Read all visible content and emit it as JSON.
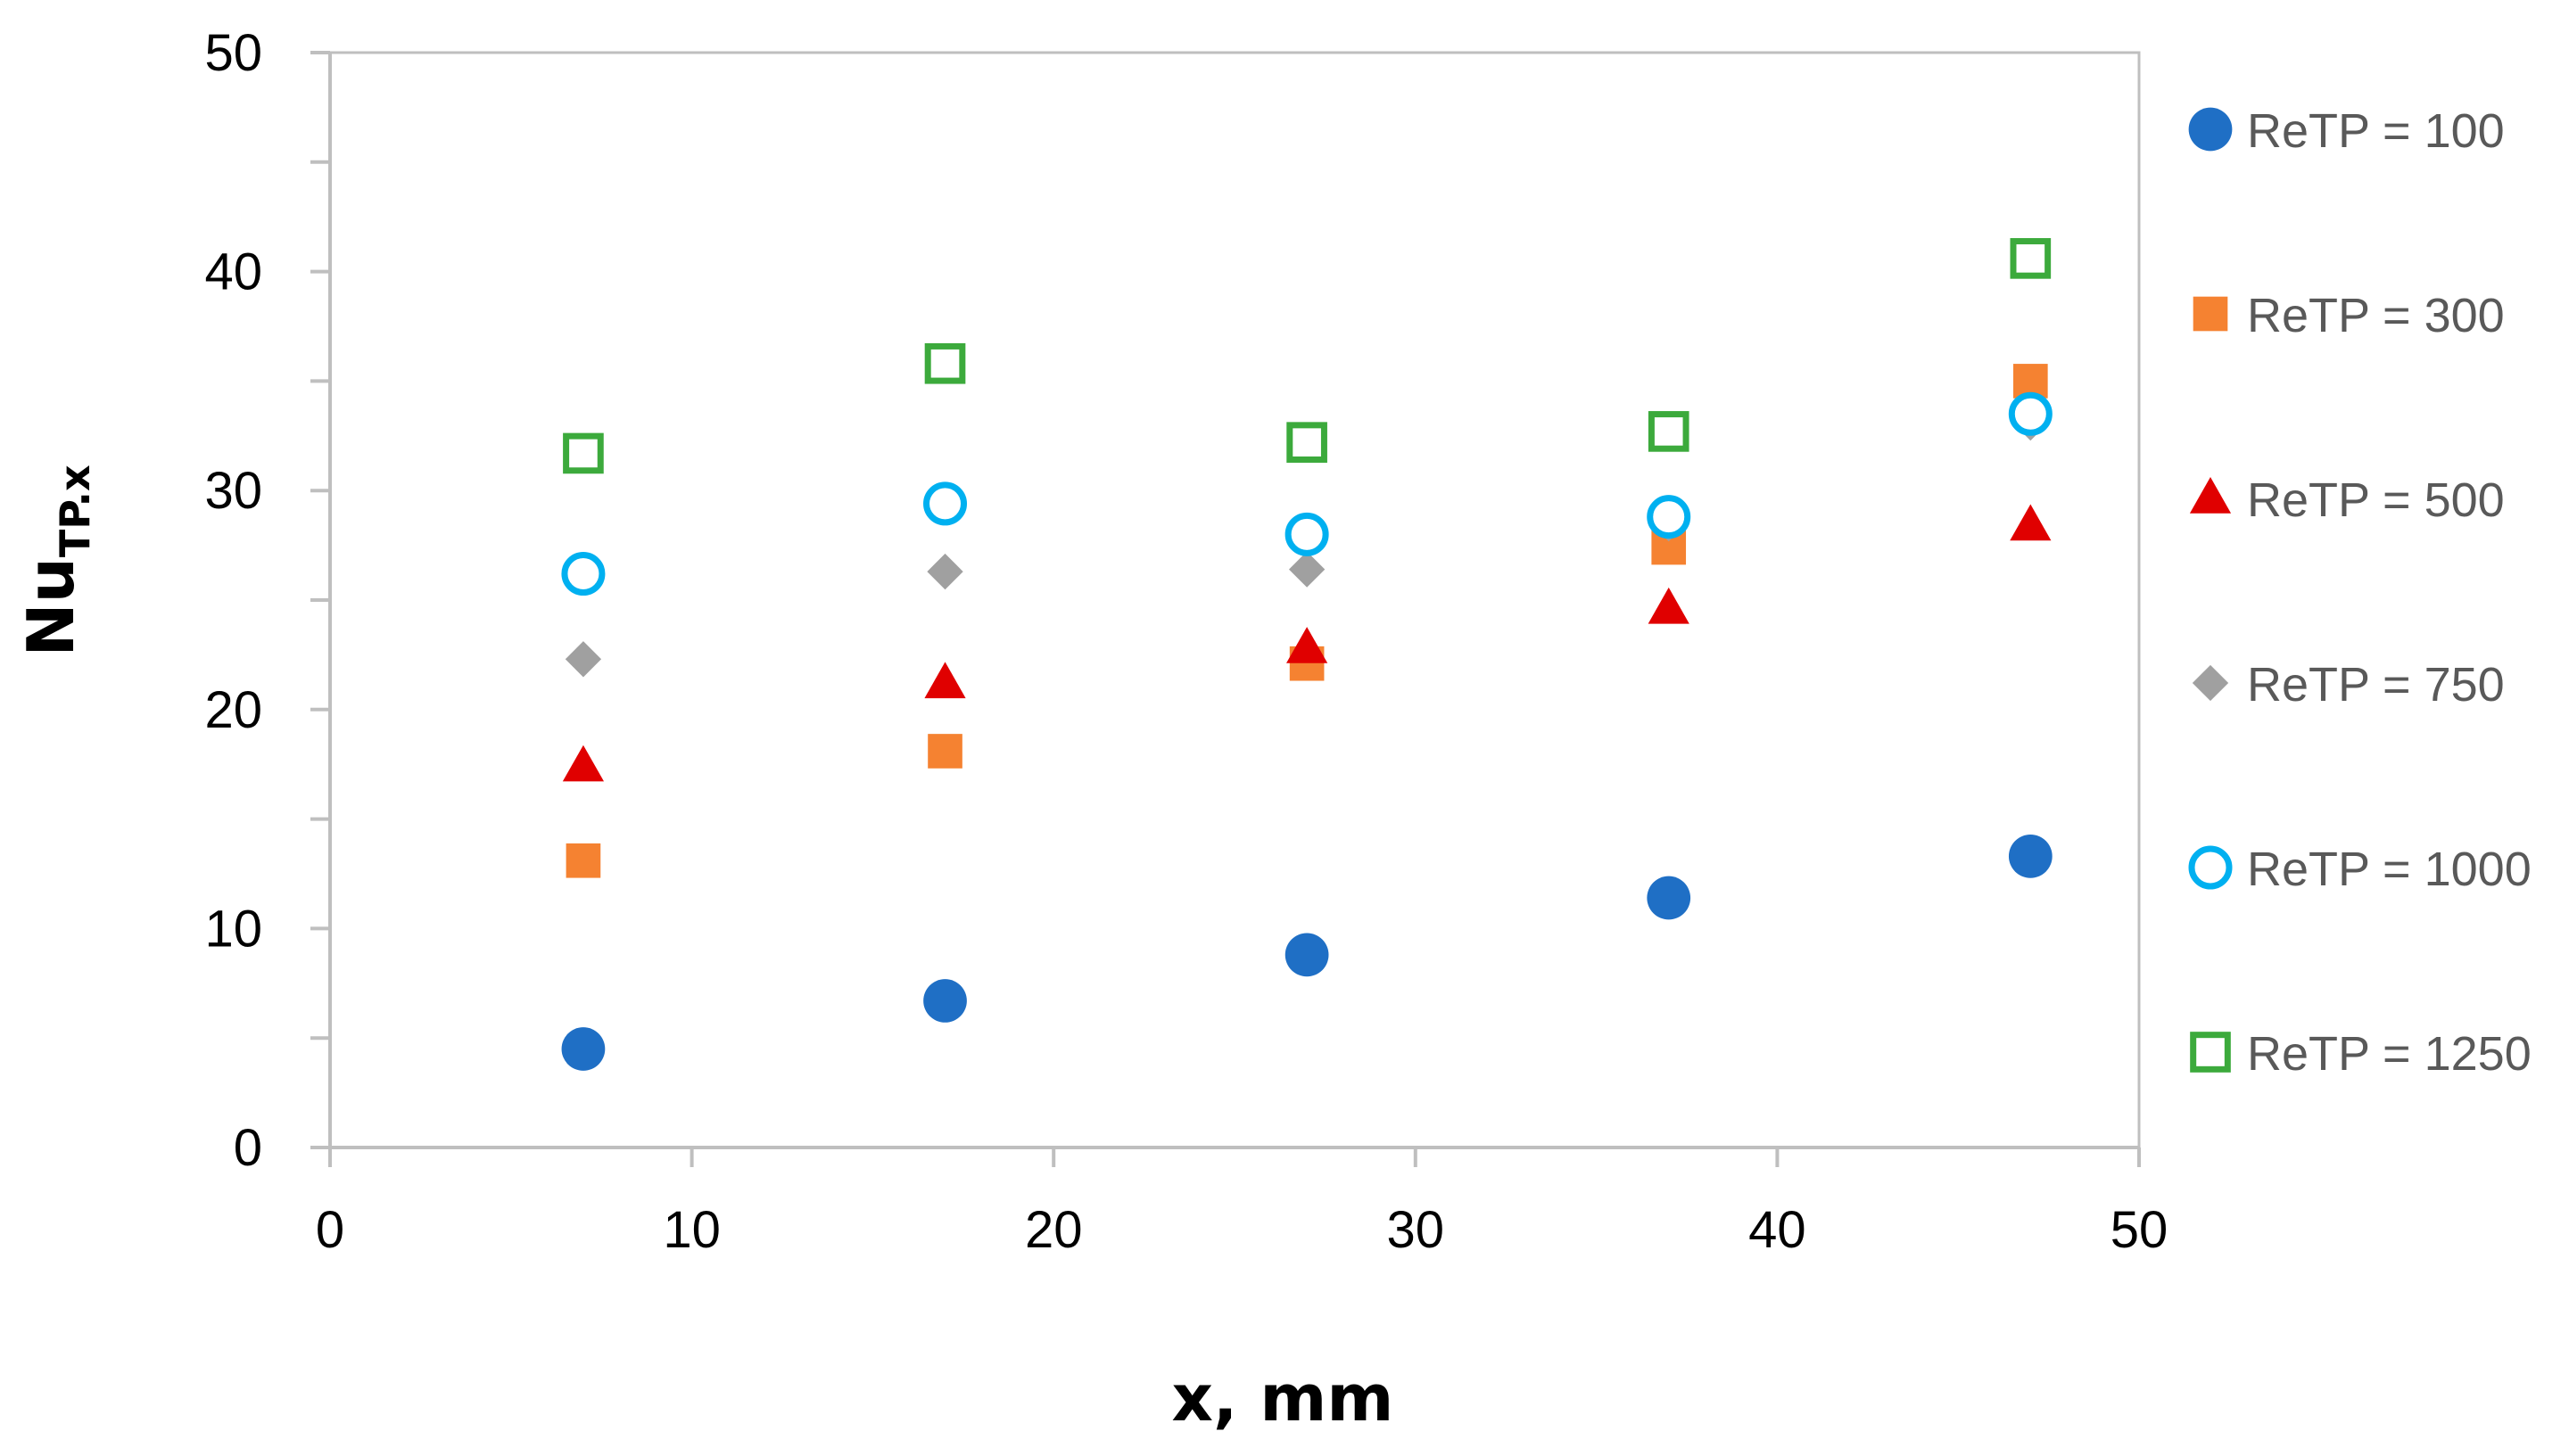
{
  "chart_data": {
    "type": "scatter",
    "title": "",
    "xlabel": "x, mm",
    "ylabel_main": "Nu",
    "ylabel_sub": "TP.x",
    "xlim": [
      0,
      50
    ],
    "ylim": [
      0,
      50
    ],
    "x_ticks": [
      0,
      10,
      20,
      30,
      40,
      50
    ],
    "y_ticks": [
      0,
      10,
      20,
      30,
      40,
      50
    ],
    "y_minor_step": 5,
    "grid": false,
    "legend_position": "right",
    "series": [
      {
        "name": "ReTP = 100",
        "marker": "circle",
        "color": "#1F6FC5",
        "x": [
          7,
          17,
          27,
          37,
          47
        ],
        "values": [
          4.5,
          6.7,
          8.8,
          11.4,
          13.3
        ]
      },
      {
        "name": "ReTP = 300",
        "marker": "square",
        "color": "#F58231",
        "x": [
          7,
          17,
          27,
          37,
          47
        ],
        "values": [
          13.1,
          18.1,
          22.1,
          27.4,
          35.0
        ]
      },
      {
        "name": "ReTP = 500",
        "marker": "triangle",
        "color": "#E00000",
        "x": [
          7,
          17,
          27,
          37,
          47
        ],
        "values": [
          17.4,
          21.2,
          22.8,
          24.6,
          28.4
        ]
      },
      {
        "name": "ReTP = 750",
        "marker": "diamond",
        "color": "#A0A0A0",
        "x": [
          7,
          17,
          27,
          37,
          47
        ],
        "values": [
          22.3,
          26.3,
          26.4,
          28.5,
          33.1
        ]
      },
      {
        "name": "ReTP = 1000",
        "marker": "open-circle",
        "color": "#00B0F0",
        "x": [
          7,
          17,
          27,
          37,
          47
        ],
        "values": [
          26.2,
          29.4,
          28.0,
          28.8,
          33.5
        ]
      },
      {
        "name": "ReTP = 1250",
        "marker": "open-square",
        "color": "#3CAA3C",
        "x": [
          7,
          17,
          27,
          37,
          47
        ],
        "values": [
          31.7,
          35.8,
          32.2,
          32.7,
          40.6
        ]
      }
    ]
  }
}
